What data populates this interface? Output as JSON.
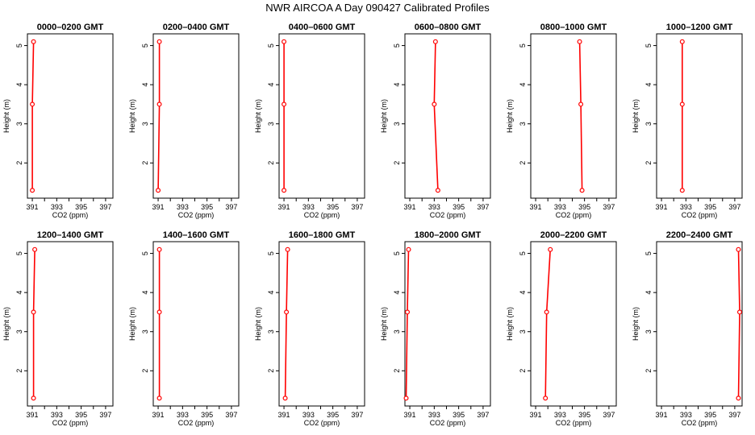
{
  "title": "NWR AIRCOA A  Day 090427  Calibrated Profiles",
  "chart_data": {
    "type": "line",
    "xlabel": "CO2 (ppm)",
    "ylabel": "Height (m)",
    "xlim": [
      390.6,
      397.6
    ],
    "ylim": [
      1.1,
      5.3
    ],
    "xticks": [
      391,
      392,
      393,
      394,
      395,
      396,
      397
    ],
    "xtick_labels": [
      "391",
      "",
      "393",
      "",
      "395",
      "",
      "397"
    ],
    "yticks": [
      2,
      3,
      4,
      5
    ],
    "ytick_labels": [
      "2",
      "3",
      "4",
      "5"
    ],
    "line_color": "#ff0000",
    "marker": "open-circle",
    "heights": [
      1.3,
      3.5,
      5.1
    ],
    "panels": [
      {
        "title": "0000–0200 GMT",
        "x": [
          391.0,
          391.0,
          391.1
        ]
      },
      {
        "title": "0200–0400 GMT",
        "x": [
          391.0,
          391.1,
          391.1
        ]
      },
      {
        "title": "0400–0600 GMT",
        "x": [
          391.0,
          391.0,
          391.0
        ]
      },
      {
        "title": "0600–0800 GMT",
        "x": [
          393.3,
          393.0,
          393.1
        ]
      },
      {
        "title": "0800–1000 GMT",
        "x": [
          394.8,
          394.7,
          394.6
        ]
      },
      {
        "title": "1000–1200 GMT",
        "x": [
          392.7,
          392.7,
          392.7
        ]
      },
      {
        "title": "1200–1400 GMT",
        "x": [
          391.1,
          391.1,
          391.2
        ]
      },
      {
        "title": "1400–1600 GMT",
        "x": [
          391.1,
          391.1,
          391.1
        ]
      },
      {
        "title": "1600–1800 GMT",
        "x": [
          391.1,
          391.2,
          391.3
        ]
      },
      {
        "title": "1800–2000 GMT",
        "x": [
          390.7,
          390.8,
          390.9
        ]
      },
      {
        "title": "2000–2200 GMT",
        "x": [
          391.8,
          391.9,
          392.2
        ]
      },
      {
        "title": "2200–2400 GMT",
        "x": [
          397.3,
          397.4,
          397.3
        ]
      }
    ]
  }
}
